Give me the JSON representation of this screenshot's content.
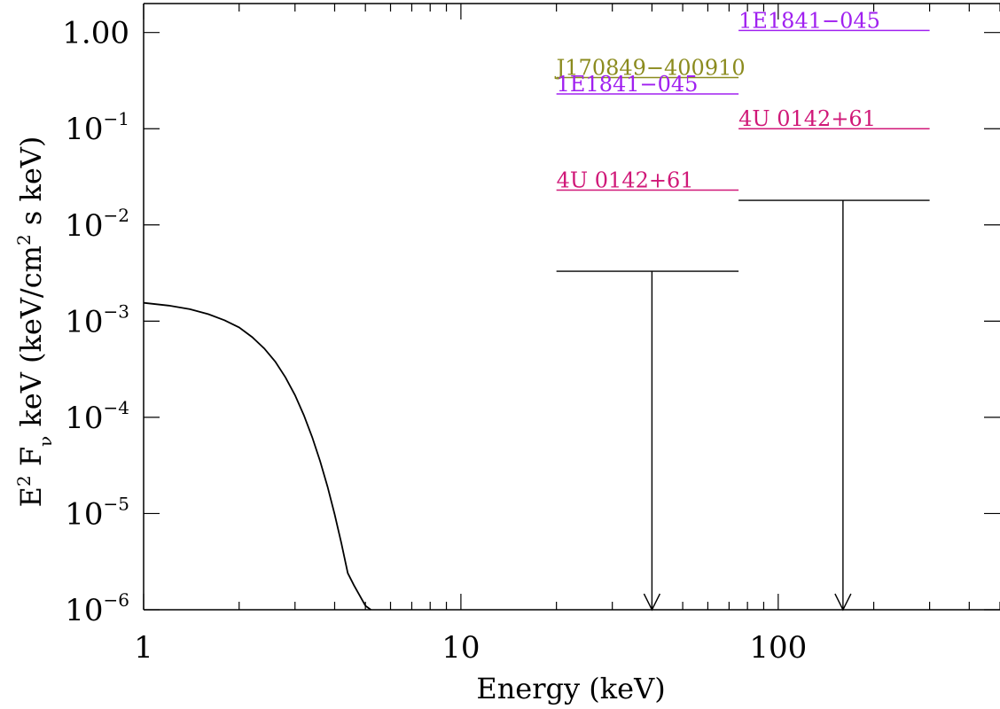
{
  "chart_data": {
    "type": "line",
    "title": "",
    "xlabel": "Energy (keV)",
    "ylabel": {
      "part1": "E",
      "part1_sup": "2",
      "part2": " F",
      "part2_sub": "ν",
      "part3": " keV (keV/cm",
      "part3_sup": "2",
      "part4": " s keV)"
    },
    "x_scale": "log",
    "y_scale": "log",
    "xlim": [
      1,
      500
    ],
    "ylim": [
      1e-06,
      2.0
    ],
    "x_ticks": [
      {
        "value": 1,
        "label": "1"
      },
      {
        "value": 10,
        "label": "10"
      },
      {
        "value": 100,
        "label": "100"
      }
    ],
    "y_ticks": [
      {
        "value": 1,
        "base": "1.00",
        "exp": ""
      },
      {
        "value": 0.1,
        "base": "10",
        "exp": "−1"
      },
      {
        "value": 0.01,
        "base": "10",
        "exp": "−2"
      },
      {
        "value": 0.001,
        "base": "10",
        "exp": "−3"
      },
      {
        "value": 0.0001,
        "base": "10",
        "exp": "−4"
      },
      {
        "value": 1e-05,
        "base": "10",
        "exp": "−5"
      },
      {
        "value": 1e-06,
        "base": "10",
        "exp": "−6"
      }
    ],
    "spectrum_curve": {
      "color": "#000000",
      "points": [
        [
          1.0,
          0.00155
        ],
        [
          1.2,
          0.00145
        ],
        [
          1.4,
          0.00133
        ],
        [
          1.6,
          0.00118
        ],
        [
          1.8,
          0.00102
        ],
        [
          2.0,
          0.00086
        ],
        [
          2.2,
          0.00068
        ],
        [
          2.4,
          0.00052
        ],
        [
          2.6,
          0.00038
        ],
        [
          2.8,
          0.00026
        ],
        [
          3.0,
          0.00017
        ],
        [
          3.2,
          0.000105
        ],
        [
          3.4,
          6.2e-05
        ],
        [
          3.6,
          3.5e-05
        ],
        [
          3.8,
          1.9e-05
        ],
        [
          4.0,
          9.8e-06
        ],
        [
          4.2,
          4.9e-06
        ],
        [
          4.4,
          2.4e-06
        ],
        [
          4.6,
          1.8e-06
        ],
        [
          4.8,
          1.4e-06
        ],
        [
          5.0,
          1.1e-06
        ],
        [
          5.2,
          1e-06
        ]
      ]
    },
    "upper_limits": [
      {
        "x_low": 20,
        "x_high": 75,
        "x_center": 40,
        "y": 0.0033,
        "color": "#000000"
      },
      {
        "x_low": 75,
        "x_high": 300,
        "x_center": 160,
        "y": 0.018,
        "color": "#000000"
      }
    ],
    "reference_levels": [
      {
        "name": "J170849−400910",
        "x_low": 20,
        "x_high": 75,
        "y": 0.34,
        "color": "#8b8b1e",
        "label_pos": "above"
      },
      {
        "name": "1E1841−045",
        "x_low": 20,
        "x_high": 75,
        "y": 0.23,
        "color": "#a020f0",
        "label_pos": "above"
      },
      {
        "name": "4U 0142+61",
        "x_low": 20,
        "x_high": 75,
        "y": 0.023,
        "color": "#d01878",
        "label_pos": "above"
      },
      {
        "name": "1E1841−045",
        "x_low": 75,
        "x_high": 300,
        "y": 1.05,
        "color": "#a020f0",
        "label_pos": "above"
      },
      {
        "name": "4U 0142+61",
        "x_low": 75,
        "x_high": 300,
        "y": 0.1,
        "color": "#d01878",
        "label_pos": "above"
      }
    ]
  }
}
